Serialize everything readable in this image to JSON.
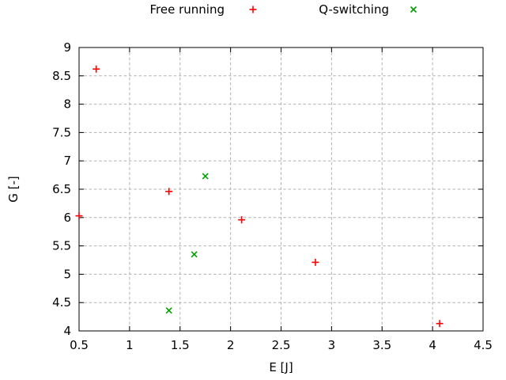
{
  "page": {
    "background": "#ffffff"
  },
  "chart_data": {
    "type": "scatter",
    "title": "",
    "xlabel": "E [J]",
    "ylabel": "G [-]",
    "xlim": [
      0.5,
      4.5
    ],
    "ylim": [
      4.0,
      9.0
    ],
    "xticks": [
      0.5,
      1,
      1.5,
      2,
      2.5,
      3,
      3.5,
      4,
      4.5
    ],
    "yticks": [
      4,
      4.5,
      5,
      5.5,
      6,
      6.5,
      7,
      7.5,
      8,
      8.5,
      9
    ],
    "grid": true,
    "grid_color": "#b0b0b0",
    "axis_color": "#000000",
    "text_color": "#000000",
    "legend_position": "top-outside",
    "series": [
      {
        "name": "Free running",
        "marker": "plus",
        "color": "#ff0000",
        "points": [
          [
            0.5,
            6.03
          ],
          [
            0.67,
            8.62
          ],
          [
            1.39,
            6.46
          ],
          [
            2.11,
            5.96
          ],
          [
            2.84,
            5.21
          ],
          [
            4.07,
            4.13
          ]
        ]
      },
      {
        "name": "Q-switching",
        "marker": "cross",
        "color": "#00a000",
        "points": [
          [
            1.39,
            4.36
          ],
          [
            1.64,
            5.35
          ],
          [
            1.75,
            6.73
          ]
        ]
      }
    ]
  }
}
